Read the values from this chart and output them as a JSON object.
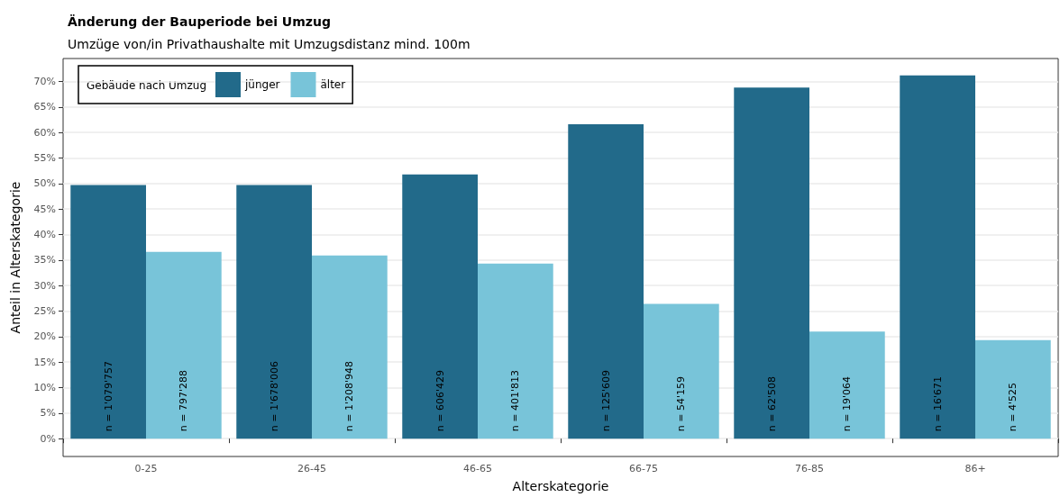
{
  "chart_data": {
    "type": "bar",
    "title": "Änderung der Bauperiode bei Umzug",
    "subtitle": "Umzüge von/in Privathaushalte mit Umzugsdistanz mind. 100m",
    "xlabel": "Alterskategorie",
    "ylabel": "Anteil in Alterskategorie",
    "legend_title": "Gebäude nach Umzug",
    "categories": [
      "0-25",
      "26-45",
      "46-65",
      "66-75",
      "76-85",
      "86+"
    ],
    "series": [
      {
        "name": "jünger",
        "color": "#226a8a",
        "values": [
          49.7,
          49.7,
          51.8,
          61.6,
          68.8,
          71.2
        ]
      },
      {
        "name": "älter",
        "color": "#78c4d9",
        "values": [
          36.6,
          35.9,
          34.3,
          26.4,
          21.0,
          19.3
        ]
      }
    ],
    "annotations": [
      "n = 1'079'757",
      "n = 797'288",
      "n = 1'678'006",
      "n = 1'208'948",
      "n = 606'429",
      "n = 401'813",
      "n = 125'609",
      "n = 54'159",
      "n = 62'508",
      "n = 19'064",
      "n = 16'671",
      "n = 4'525"
    ],
    "ylim": [
      -3.5,
      74.5
    ],
    "yticks": [
      {
        "value": 0,
        "label": "0%"
      },
      {
        "value": 5,
        "label": "5%"
      },
      {
        "value": 10,
        "label": "10%"
      },
      {
        "value": 15,
        "label": "15%"
      },
      {
        "value": 20,
        "label": "20%"
      },
      {
        "value": 25,
        "label": "25%"
      },
      {
        "value": 30,
        "label": "30%"
      },
      {
        "value": 35,
        "label": "35%"
      },
      {
        "value": 40,
        "label": "40%"
      },
      {
        "value": 45,
        "label": "45%"
      },
      {
        "value": 50,
        "label": "50%"
      },
      {
        "value": 55,
        "label": "55%"
      },
      {
        "value": 60,
        "label": "60%"
      },
      {
        "value": 65,
        "label": "65%"
      },
      {
        "value": 70,
        "label": "70%"
      }
    ],
    "grid": "y",
    "legend": "top left"
  }
}
